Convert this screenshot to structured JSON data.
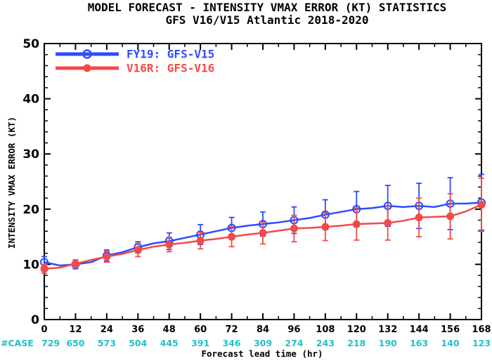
{
  "chart_data": {
    "type": "line",
    "title": "MODEL FORECAST - INTENSITY VMAX ERROR (KT) STATISTICS",
    "subtitle": "GFS V16/V15 Atlantic 2018-2020",
    "xlabel": "Forecast lead time (hr)",
    "ylabel": "INTENSITY VMAX ERROR (KT)",
    "xlim": [
      0,
      168
    ],
    "ylim": [
      0,
      50
    ],
    "x_ticks": [
      0,
      12,
      24,
      36,
      48,
      60,
      72,
      84,
      96,
      108,
      120,
      132,
      144,
      156,
      168
    ],
    "y_ticks": [
      0,
      10,
      20,
      30,
      40,
      50
    ],
    "legend_position": "top-left",
    "case_label": "#CASE",
    "case_counts": [
      "729",
      "650",
      "573",
      "504",
      "445",
      "391",
      "346",
      "309",
      "274",
      "243",
      "218",
      "190",
      "163",
      "140",
      "123"
    ],
    "case_color": "#22c0c8",
    "series": [
      {
        "name": "FY19: GFS-V15",
        "color": "#2f4bff",
        "marker": "open-circle",
        "line_x": [
          0,
          6,
          12,
          18,
          24,
          30,
          36,
          42,
          48,
          54,
          60,
          66,
          72,
          78,
          84,
          90,
          96,
          102,
          108,
          114,
          120,
          126,
          132,
          138,
          144,
          150,
          156,
          162,
          168
        ],
        "line_y": [
          10.4,
          9.8,
          10.0,
          10.4,
          11.6,
          12.2,
          13.1,
          13.8,
          14.2,
          14.8,
          15.4,
          16.0,
          16.6,
          17.0,
          17.3,
          17.6,
          18.0,
          18.4,
          19.0,
          19.5,
          20.0,
          20.2,
          20.6,
          20.4,
          20.6,
          20.4,
          21.0,
          21.0,
          21.2
        ],
        "x": [
          0,
          12,
          24,
          36,
          48,
          60,
          72,
          84,
          96,
          108,
          120,
          132,
          144,
          156,
          168
        ],
        "values": [
          10.4,
          10.0,
          11.6,
          13.1,
          14.2,
          15.4,
          16.6,
          17.3,
          18.0,
          19.0,
          20.0,
          20.6,
          20.6,
          21.0,
          21.2
        ],
        "err_low": [
          9.4,
          9.2,
          10.6,
          12.1,
          12.7,
          13.6,
          14.7,
          15.1,
          15.6,
          16.3,
          16.8,
          16.9,
          16.5,
          16.3,
          16.2
        ],
        "err_high": [
          11.4,
          10.8,
          12.6,
          14.1,
          15.7,
          17.2,
          18.5,
          19.5,
          20.4,
          21.7,
          23.2,
          24.3,
          24.7,
          25.7,
          26.3
        ]
      },
      {
        "name": "V16R: GFS-V16",
        "color": "#f24a48",
        "marker": "filled-circle",
        "line_x": [
          0,
          6,
          12,
          18,
          24,
          30,
          36,
          42,
          48,
          54,
          60,
          66,
          72,
          78,
          84,
          90,
          96,
          102,
          108,
          114,
          120,
          126,
          132,
          138,
          144,
          150,
          156,
          162,
          168
        ],
        "line_y": [
          9.2,
          9.4,
          10.1,
          10.8,
          11.4,
          11.9,
          12.6,
          13.2,
          13.6,
          13.9,
          14.3,
          14.6,
          15.0,
          15.4,
          15.7,
          16.1,
          16.5,
          16.6,
          16.8,
          17.0,
          17.3,
          17.4,
          17.5,
          17.9,
          18.5,
          18.6,
          18.7,
          19.6,
          20.8
        ],
        "x": [
          0,
          12,
          24,
          36,
          48,
          60,
          72,
          84,
          96,
          108,
          120,
          132,
          144,
          156,
          168
        ],
        "values": [
          9.2,
          10.1,
          11.4,
          12.6,
          13.6,
          14.3,
          15.0,
          15.7,
          16.5,
          16.8,
          17.3,
          17.5,
          18.5,
          18.7,
          20.8
        ],
        "err_low": [
          8.4,
          9.4,
          10.4,
          11.4,
          12.3,
          12.8,
          13.2,
          13.7,
          14.1,
          14.3,
          14.4,
          14.4,
          15.0,
          14.6,
          16.0
        ],
        "err_high": [
          10.0,
          10.8,
          12.4,
          13.8,
          14.9,
          15.8,
          16.8,
          17.7,
          18.9,
          19.3,
          20.2,
          20.6,
          22.0,
          22.8,
          25.6
        ]
      }
    ]
  }
}
